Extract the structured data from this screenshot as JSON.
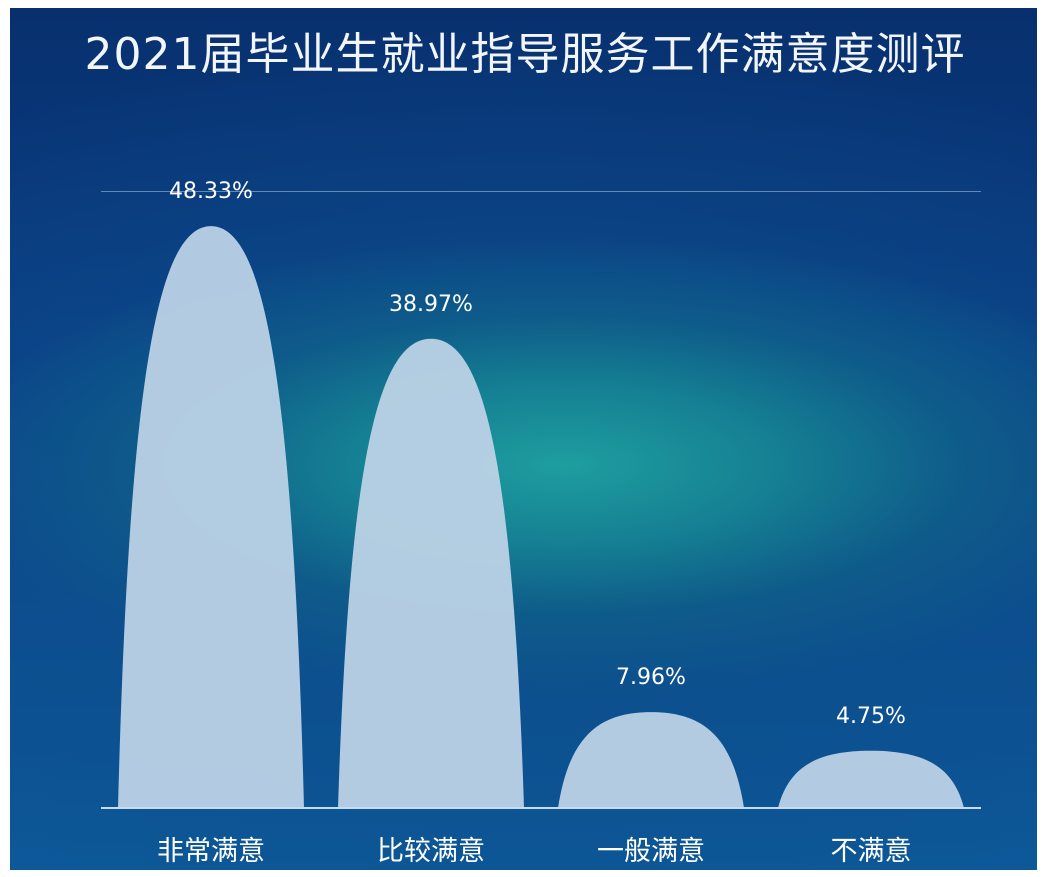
{
  "chart_data": {
    "type": "bar",
    "title": "2021届毕业生就业指导服务工作满意度测评",
    "categories": [
      "非常满意",
      "比较满意",
      "一般满意",
      "不满意"
    ],
    "values": [
      48.33,
      38.97,
      7.96,
      4.75
    ],
    "value_labels": [
      "48.33%",
      "38.97%",
      "7.96%",
      "4.75%"
    ],
    "unit": "%",
    "ylim": [
      0,
      50
    ],
    "grid": false,
    "legend": "none"
  },
  "colors": {
    "bar_fill": "#bcd2e6",
    "label_text": "#ffffff",
    "axis_line": "#c9dcef"
  }
}
